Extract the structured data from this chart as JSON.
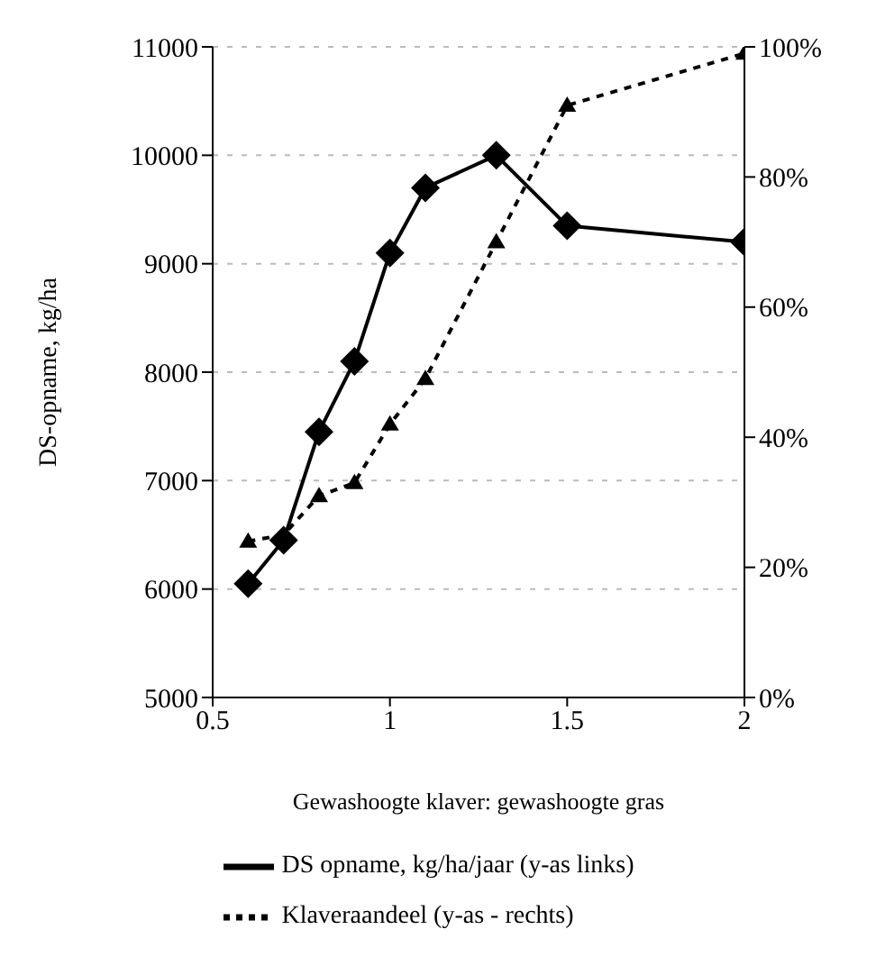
{
  "chart_data": {
    "type": "line",
    "xlabel": "Gewashoogte klaver: gewashoogte gras",
    "ylabel": "DS-opname, kg/ha",
    "x": [
      0.6,
      0.7,
      0.8,
      0.9,
      1.0,
      1.1,
      1.3,
      1.5,
      2.0
    ],
    "series": [
      {
        "name": "DS opname, kg/ha/jaar (y-as links)",
        "color": "#000000",
        "values": [
          6050,
          6450,
          7450,
          8100,
          9100,
          9700,
          10000,
          9350,
          9200
        ],
        "marker": "diamond",
        "line_style": "solid"
      },
      {
        "name": "Klaveraandeel (y-as - rechts)",
        "color": "#000000",
        "values": [
          24,
          25,
          31,
          33,
          42,
          49,
          70,
          91,
          99
        ],
        "axis": "y2",
        "marker": "triangle",
        "line_style": "dashed"
      }
    ],
    "xlim": [
      0.5,
      2
    ],
    "xticks": [
      0.5,
      1,
      1.5,
      2
    ],
    "ylim": [
      5000,
      11000
    ],
    "yticks": [
      5000,
      6000,
      7000,
      8000,
      9000,
      10000,
      11000
    ],
    "y2lim": [
      0,
      100
    ],
    "y2ticks": [
      {
        "value": 0,
        "label": "0%"
      },
      {
        "value": 20,
        "label": "20%"
      },
      {
        "value": 40,
        "label": "40%"
      },
      {
        "value": 60,
        "label": "60%"
      },
      {
        "value": 80,
        "label": "80%"
      },
      {
        "value": 100,
        "label": "100%"
      }
    ],
    "grid": "y",
    "legend": "bottom"
  }
}
